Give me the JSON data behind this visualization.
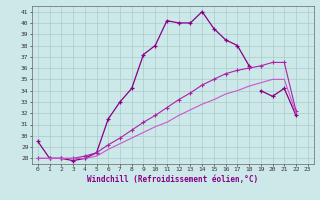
{
  "x": [
    0,
    1,
    2,
    3,
    4,
    5,
    6,
    7,
    8,
    9,
    10,
    11,
    12,
    13,
    14,
    15,
    16,
    17,
    18,
    19,
    20,
    21,
    22,
    23
  ],
  "line1": [
    29.5,
    28.0,
    28.0,
    27.8,
    28.0,
    28.5,
    31.5,
    33.0,
    34.2,
    37.2,
    38.0,
    40.2,
    40.0,
    40.0,
    41.0,
    39.5,
    38.5,
    38.0,
    36.2,
    null,
    null,
    null,
    null,
    null
  ],
  "line2_x": [
    19,
    20,
    21,
    22
  ],
  "line2_y": [
    34.0,
    33.5,
    34.2,
    31.8
  ],
  "line3": [
    28.0,
    28.0,
    28.0,
    28.0,
    28.2,
    28.5,
    29.2,
    29.8,
    30.5,
    31.2,
    31.8,
    32.5,
    33.2,
    33.8,
    34.5,
    35.0,
    35.5,
    35.8,
    36.0,
    36.2,
    36.5,
    36.5,
    32.2,
    null
  ],
  "line4": [
    28.0,
    28.0,
    28.0,
    28.0,
    28.0,
    28.2,
    28.8,
    29.3,
    29.8,
    30.3,
    30.8,
    31.2,
    31.8,
    32.3,
    32.8,
    33.2,
    33.7,
    34.0,
    34.4,
    34.7,
    35.0,
    35.0,
    32.0,
    null
  ],
  "line_color1": "#880088",
  "line_color2": "#aa22aa",
  "line_color3": "#cc55cc",
  "bg_color": "#cce8e8",
  "grid_color": "#aacccc",
  "xlabel": "Windchill (Refroidissement éolien,°C)",
  "xlim": [
    -0.5,
    23.5
  ],
  "ylim": [
    27.5,
    41.5
  ],
  "yticks": [
    28,
    29,
    30,
    31,
    32,
    33,
    34,
    35,
    36,
    37,
    38,
    39,
    40,
    41
  ],
  "xticks": [
    0,
    1,
    2,
    3,
    4,
    5,
    6,
    7,
    8,
    9,
    10,
    11,
    12,
    13,
    14,
    15,
    16,
    17,
    18,
    19,
    20,
    21,
    22,
    23
  ]
}
